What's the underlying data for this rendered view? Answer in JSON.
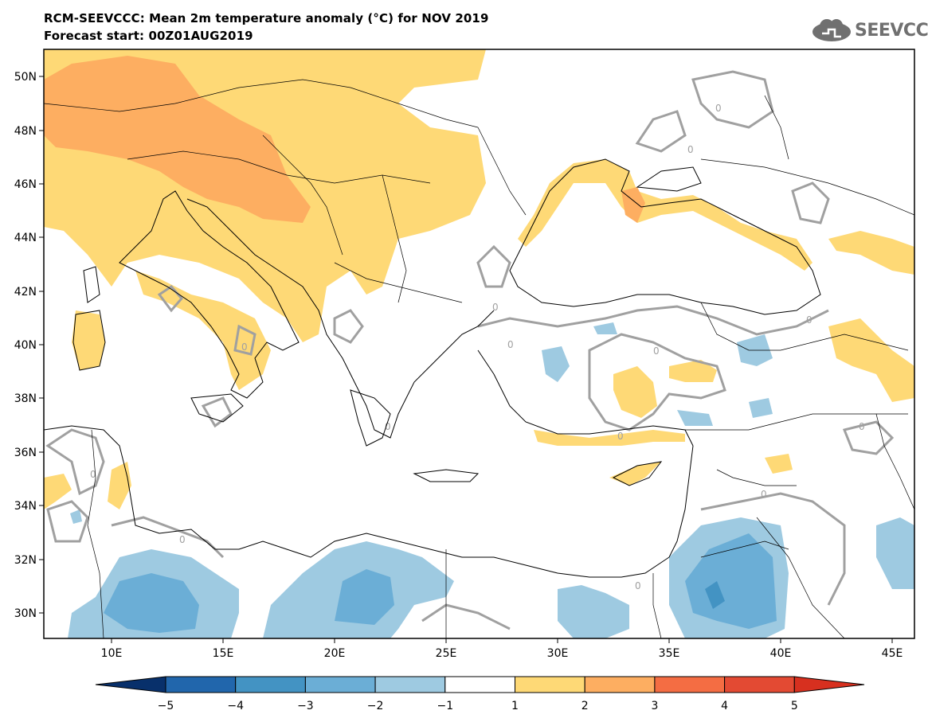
{
  "title": {
    "line1": "RCM-SEEVCCC: Mean 2m temperature anomaly (°C) for NOV 2019",
    "line2": "Forecast start: 00Z01AUG2019"
  },
  "logo": {
    "text": "SEEVCCC",
    "icon": "cloud-logo-icon"
  },
  "map": {
    "lon_range": [
      7,
      46
    ],
    "lat_range": [
      29,
      51
    ],
    "lat_labels": [
      "50N",
      "48N",
      "46N",
      "44N",
      "42N",
      "40N",
      "38N",
      "36N",
      "34N",
      "32N",
      "30N"
    ],
    "lat_values": [
      50,
      48,
      46,
      44,
      42,
      40,
      38,
      36,
      34,
      32,
      30
    ],
    "lon_labels": [
      "10E",
      "15E",
      "20E",
      "25E",
      "30E",
      "35E",
      "40E",
      "45E"
    ],
    "lon_values": [
      10,
      15,
      20,
      25,
      30,
      35,
      40,
      45
    ],
    "contour_label": "0"
  },
  "colorbar": {
    "levels": [
      "−5",
      "−4",
      "−3",
      "−2",
      "−1",
      "1",
      "2",
      "3",
      "4",
      "5"
    ],
    "colors": [
      "#08306b",
      "#2166ac",
      "#4393c3",
      "#6baed6",
      "#9ecae1",
      "#ffffff",
      "#fed976",
      "#fdae61",
      "#f46d43",
      "#e34a33",
      "#d7301f"
    ]
  }
}
